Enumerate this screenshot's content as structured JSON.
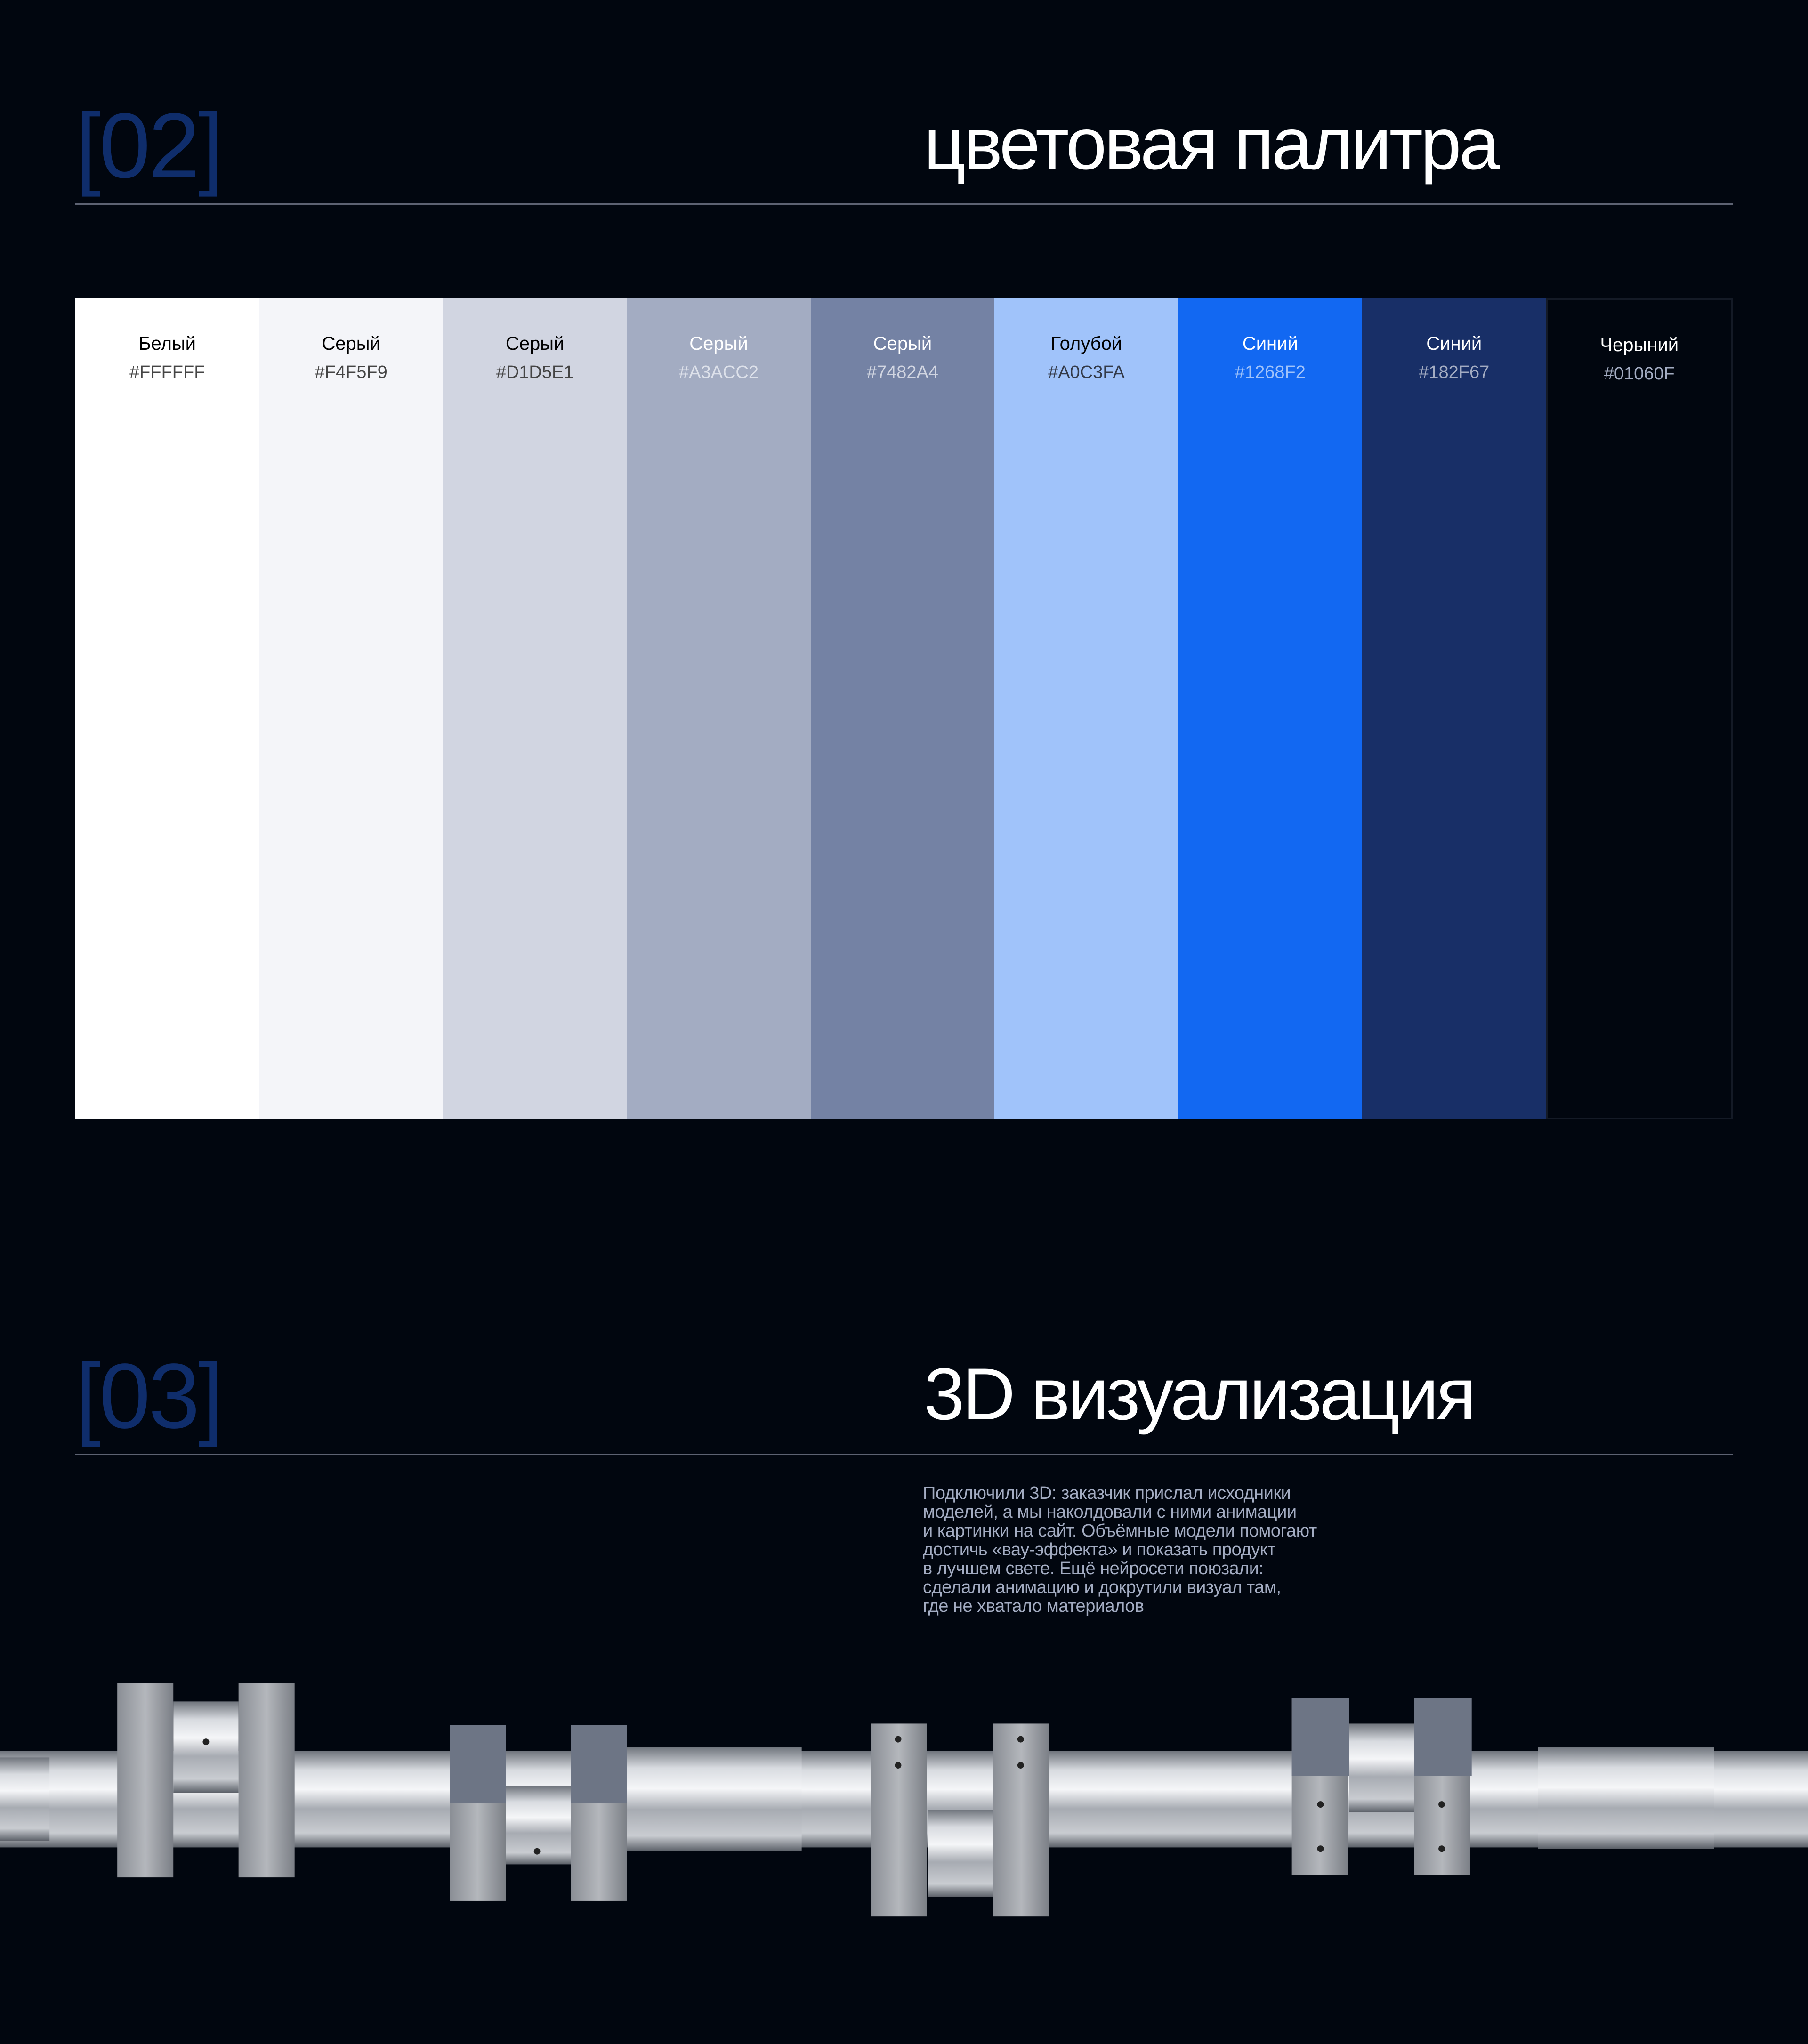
{
  "sections": [
    {
      "number": "[02]",
      "title": "цветовая палитра"
    },
    {
      "number": "[03]",
      "title": "3D визуализация"
    }
  ],
  "palette": [
    {
      "name": "Белый",
      "hex": "#FFFFFF",
      "bg": "#FFFFFF",
      "name_color": "#000000",
      "hex_color": "#444444"
    },
    {
      "name": "Серый",
      "hex": "#F4F5F9",
      "bg": "#F4F5F9",
      "name_color": "#000000",
      "hex_color": "#444444"
    },
    {
      "name": "Серый",
      "hex": "#D1D5E1",
      "bg": "#D1D5E1",
      "name_color": "#000000",
      "hex_color": "#444444"
    },
    {
      "name": "Серый",
      "hex": "#A3ACC2",
      "bg": "#A3ACC2",
      "name_color": "#FFFFFF",
      "hex_color": "#DDE1EA"
    },
    {
      "name": "Серый",
      "hex": "#7482A4",
      "bg": "#7482A4",
      "name_color": "#FFFFFF",
      "hex_color": "#D1D5E1"
    },
    {
      "name": "Голубой",
      "hex": "#A0C3FA",
      "bg": "#A0C3FA",
      "name_color": "#000000",
      "hex_color": "#333A48"
    },
    {
      "name": "Синий",
      "hex": "#1268F2",
      "bg": "#1268F2",
      "name_color": "#FFFFFF",
      "hex_color": "#A0C3FA"
    },
    {
      "name": "Синий",
      "hex": "#182F67",
      "bg": "#182F67",
      "name_color": "#FFFFFF",
      "hex_color": "#A3ACC2"
    },
    {
      "name": "Черыний",
      "hex": "#01060F",
      "bg": "#01060F",
      "name_color": "#FFFFFF",
      "hex_color": "#A3ACC2"
    }
  ],
  "description": [
    "Подключили 3D: заказчик прислал исходники",
    "моделей, а мы наколдовали с ними анимации",
    "и картинки на сайт. Объёмные модели помогают",
    "достичь «вау-эффекта» и показать продукт",
    "в лучшем свете. Ещё нейросети поюзали:",
    "сделали анимацию и докрутили визуал там,",
    "где не хватало материалов"
  ],
  "colors": {
    "background": "#01060F",
    "section_number": "#0F2D6B",
    "rule": "#5D6272",
    "body_text": "#A3ACC2"
  }
}
